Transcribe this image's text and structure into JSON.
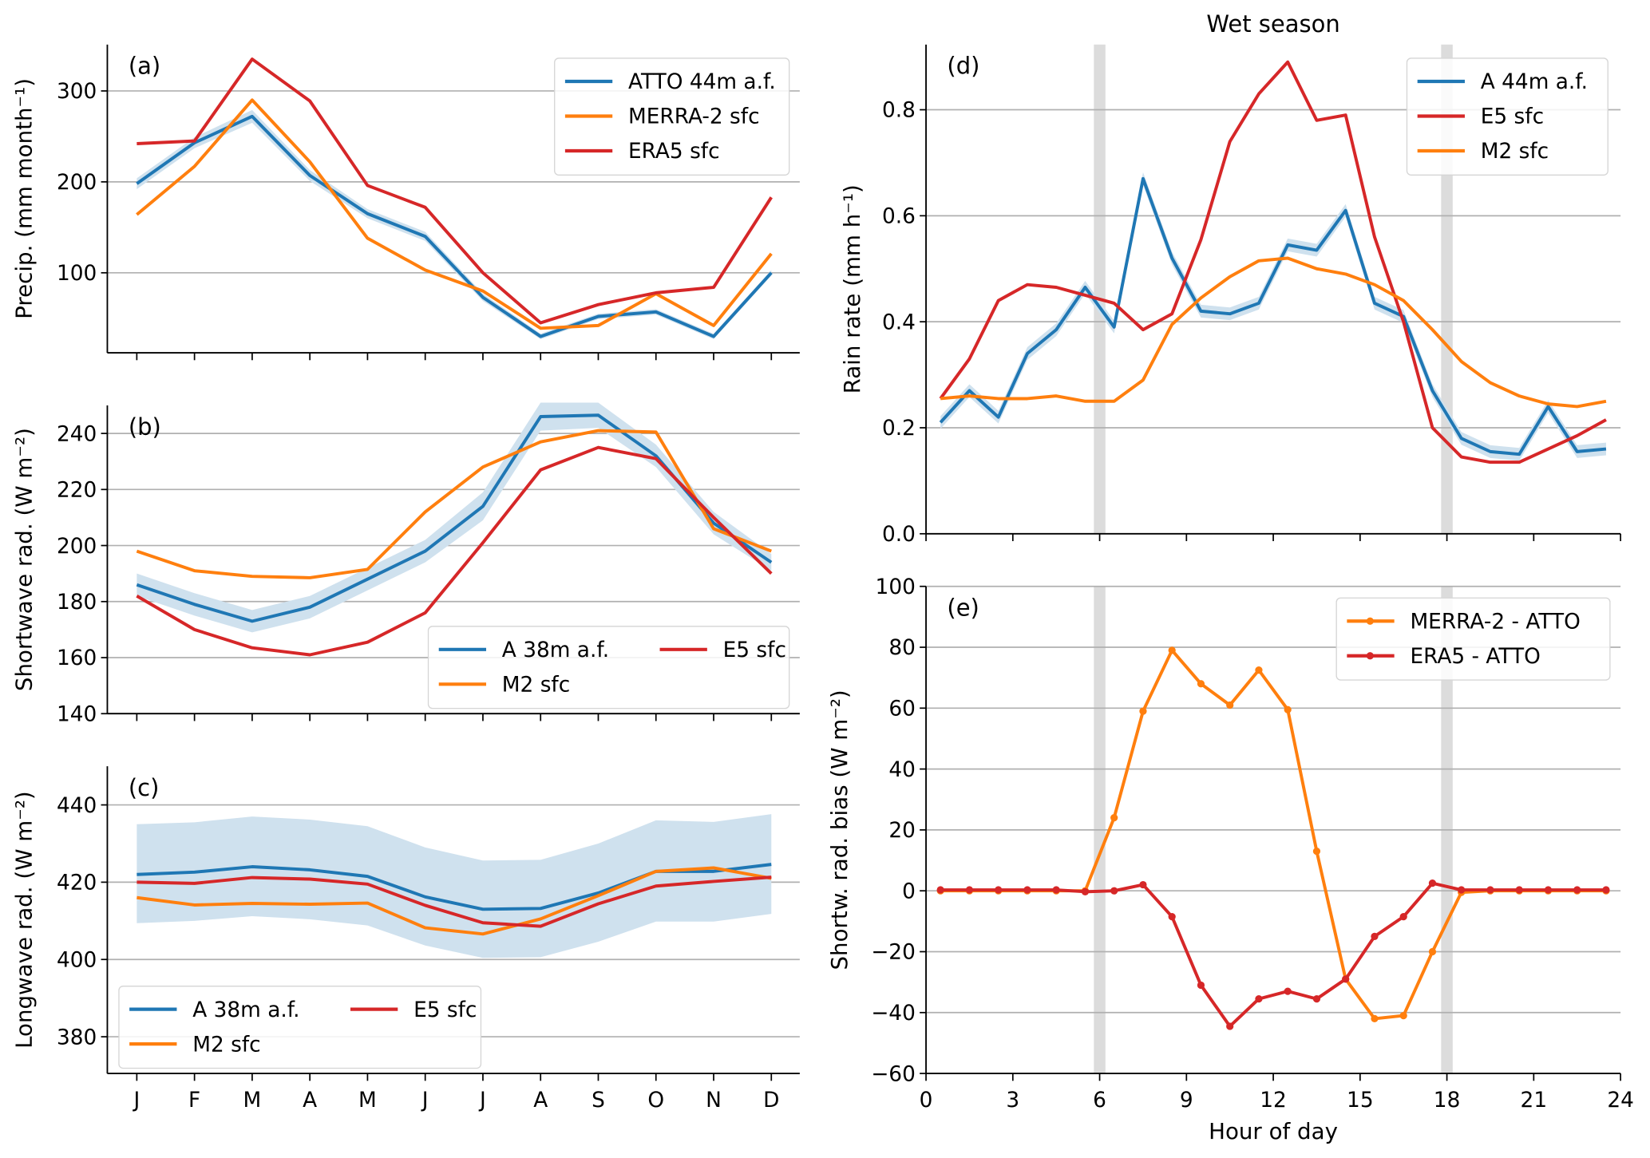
{
  "title": "Wet season",
  "colors": {
    "blue": "#1f77b4",
    "orange": "#ff7f0e",
    "red": "#d62728",
    "band": "#cfe1ee",
    "grid": "#b0b0b0",
    "night": "#dcdcdc"
  },
  "chart_data": [
    {
      "panel": "(a)",
      "type": "line",
      "x_kind": "month",
      "categories": [
        "J",
        "F",
        "M",
        "A",
        "M",
        "J",
        "J",
        "A",
        "S",
        "O",
        "N",
        "D"
      ],
      "show_xticklabels": false,
      "ylabel": "Precip. (mm month⁻¹)",
      "ylim": [
        12,
        351
      ],
      "yticks": [
        100,
        200,
        300
      ],
      "ytick_labels": [
        "100",
        "200",
        "300"
      ],
      "legend_placement": "top-right",
      "legend_columns": 1,
      "series": [
        {
          "name": "ATTO 44m a.f.",
          "color": "blue",
          "values": [
            198,
            243,
            272,
            207,
            165,
            140,
            73,
            30,
            52,
            57,
            30,
            100
          ],
          "band_lower": [
            192,
            237,
            265,
            201,
            160,
            135,
            69,
            27,
            49,
            54,
            27,
            97
          ],
          "band_upper": [
            204,
            249,
            279,
            213,
            170,
            145,
            77,
            33,
            55,
            60,
            33,
            103
          ]
        },
        {
          "name": "MERRA-2 sfc",
          "color": "orange",
          "values": [
            164,
            217,
            290,
            222,
            138,
            103,
            80,
            39,
            42,
            77,
            42,
            121
          ]
        },
        {
          "name": "ERA5 sfc",
          "color": "red",
          "values": [
            242,
            245,
            335,
            289,
            196,
            172,
            100,
            45,
            65,
            78,
            84,
            183
          ]
        }
      ]
    },
    {
      "panel": "(b)",
      "type": "line",
      "x_kind": "month",
      "categories": [
        "J",
        "F",
        "M",
        "A",
        "M",
        "J",
        "J",
        "A",
        "S",
        "O",
        "N",
        "D"
      ],
      "show_xticklabels": false,
      "ylabel": "Shortwave rad. (W m⁻²)",
      "ylim": [
        140,
        250
      ],
      "yticks": [
        140,
        160,
        180,
        200,
        220,
        240
      ],
      "ytick_labels": [
        "140",
        "160",
        "180",
        "200",
        "220",
        "240"
      ],
      "legend_placement": "lower-right",
      "legend_columns": 2,
      "series": [
        {
          "name": "A 38m a.f.",
          "color": "blue",
          "values": [
            186,
            179,
            173,
            178,
            188,
            198,
            214,
            246,
            246.5,
            232,
            208,
            194
          ],
          "band_lower": [
            182,
            175,
            169,
            174,
            184,
            194,
            209,
            241,
            242,
            228,
            204,
            191
          ],
          "band_upper": [
            190,
            183,
            177,
            182,
            192,
            202,
            219,
            251,
            251,
            236,
            212,
            197
          ]
        },
        {
          "name": "M2 sfc",
          "color": "orange",
          "values": [
            198,
            191,
            189,
            188.5,
            191.5,
            212,
            228,
            237,
            241,
            240.5,
            206,
            198
          ]
        },
        {
          "name": "E5 sfc",
          "color": "red",
          "values": [
            182,
            170,
            163.5,
            161,
            165.5,
            176,
            201,
            227,
            235,
            231,
            210,
            190
          ]
        }
      ]
    },
    {
      "panel": "(c)",
      "type": "line",
      "x_kind": "month",
      "categories": [
        "J",
        "F",
        "M",
        "A",
        "M",
        "J",
        "J",
        "A",
        "S",
        "O",
        "N",
        "D"
      ],
      "show_xticklabels": true,
      "ylabel": "Longwave rad. (W m⁻²)",
      "ylim": [
        370.5,
        450
      ],
      "yticks": [
        380,
        400,
        420,
        440
      ],
      "ytick_labels": [
        "380",
        "400",
        "420",
        "440"
      ],
      "legend_placement": "lower-left",
      "legend_columns": 2,
      "series": [
        {
          "name": "A 38m a.f.",
          "color": "blue",
          "values": [
            422,
            422.6,
            424,
            423.2,
            421.5,
            416.2,
            413,
            413.2,
            417.2,
            422.8,
            422.8,
            424.6
          ],
          "band_lower": [
            409.4,
            410,
            411.2,
            410.4,
            408.8,
            403.6,
            400.4,
            400.6,
            404.6,
            409.8,
            409.8,
            411.8
          ],
          "band_upper": [
            435,
            435.5,
            437,
            436.2,
            434.5,
            429,
            425.6,
            425.8,
            430,
            436,
            435.6,
            437.6
          ]
        },
        {
          "name": "M2 sfc",
          "color": "orange",
          "values": [
            416,
            414.1,
            414.5,
            414.3,
            414.6,
            408.2,
            406.6,
            410.5,
            416.5,
            422.8,
            423.7,
            421
          ]
        },
        {
          "name": "E5 sfc",
          "color": "red",
          "values": [
            420,
            419.7,
            421.2,
            420.8,
            419.5,
            414,
            409.5,
            408.6,
            414.4,
            419,
            420.2,
            421.3
          ]
        }
      ]
    },
    {
      "panel": "(d)",
      "type": "line",
      "x_kind": "hour",
      "x": [
        0.5,
        1.5,
        2.5,
        3.5,
        4.5,
        5.5,
        6.5,
        7.5,
        8.5,
        9.5,
        10.5,
        11.5,
        12.5,
        13.5,
        14.5,
        15.5,
        16.5,
        17.5,
        18.5,
        19.5,
        20.5,
        21.5,
        22.5,
        23.5
      ],
      "xlim": [
        0,
        24
      ],
      "xticks": [
        0,
        3,
        6,
        9,
        12,
        15,
        18,
        21,
        24
      ],
      "show_xticklabels": false,
      "night_bands": [
        [
          5.8,
          6.2
        ],
        [
          17.8,
          18.2
        ]
      ],
      "ylabel": "Rain rate (mm h⁻¹)",
      "ylim": [
        0,
        0.923
      ],
      "yticks": [
        0,
        0.2,
        0.4,
        0.6,
        0.8
      ],
      "ytick_labels": [
        "0.0",
        "0.2",
        "0.4",
        "0.6",
        "0.8"
      ],
      "legend_placement": "top-right",
      "legend_columns": 1,
      "series": [
        {
          "name": "A 44m a.f.",
          "color": "blue",
          "values": [
            0.21,
            0.27,
            0.22,
            0.34,
            0.385,
            0.465,
            0.39,
            0.67,
            0.52,
            0.42,
            0.415,
            0.435,
            0.545,
            0.535,
            0.61,
            0.435,
            0.41,
            0.27,
            0.18,
            0.155,
            0.15,
            0.24,
            0.155,
            0.16
          ],
          "band_halfwidth": 0.012
        },
        {
          "name": "E5 sfc",
          "color": "red",
          "values": [
            0.255,
            0.33,
            0.44,
            0.47,
            0.465,
            0.45,
            0.435,
            0.385,
            0.415,
            0.555,
            0.74,
            0.83,
            0.89,
            0.78,
            0.79,
            0.56,
            0.4,
            0.2,
            0.145,
            0.135,
            0.135,
            0.16,
            0.185,
            0.215
          ]
        },
        {
          "name": "M2 sfc",
          "color": "orange",
          "values": [
            0.255,
            0.26,
            0.255,
            0.255,
            0.26,
            0.25,
            0.25,
            0.29,
            0.395,
            0.445,
            0.485,
            0.515,
            0.52,
            0.5,
            0.49,
            0.47,
            0.44,
            0.385,
            0.325,
            0.285,
            0.26,
            0.245,
            0.24,
            0.25
          ]
        }
      ]
    },
    {
      "panel": "(e)",
      "type": "line",
      "x_kind": "hour",
      "markers": true,
      "x": [
        0.5,
        1.5,
        2.5,
        3.5,
        4.5,
        5.5,
        6.5,
        7.5,
        8.5,
        9.5,
        10.5,
        11.5,
        12.5,
        13.5,
        14.5,
        15.5,
        16.5,
        17.5,
        18.5,
        19.5,
        20.5,
        21.5,
        22.5,
        23.5
      ],
      "xlim": [
        0,
        24
      ],
      "xticks": [
        0,
        3,
        6,
        9,
        12,
        15,
        18,
        21,
        24
      ],
      "xtick_labels": [
        "0",
        "3",
        "6",
        "9",
        "12",
        "15",
        "18",
        "21",
        "24"
      ],
      "show_xticklabels": true,
      "xlabel": "Hour of day",
      "night_bands": [
        [
          5.8,
          6.2
        ],
        [
          17.8,
          18.2
        ]
      ],
      "ylabel": "Shortw. rad. bias (W m⁻²)",
      "ylim": [
        -60,
        100
      ],
      "yticks": [
        -60,
        -40,
        -20,
        0,
        20,
        40,
        60,
        80,
        100
      ],
      "ytick_labels": [
        "−60",
        "−40",
        "−20",
        "0",
        "20",
        "40",
        "60",
        "80",
        "100"
      ],
      "legend_placement": "top-right",
      "legend_columns": 1,
      "series": [
        {
          "name": "MERRA-2 - ATTO",
          "color": "orange",
          "values": [
            0,
            0,
            0,
            0,
            0,
            0,
            24,
            59,
            79,
            68,
            61,
            72.5,
            59.5,
            13,
            -29,
            -42,
            -41,
            -20,
            -0.5,
            0,
            0,
            0,
            0,
            0
          ]
        },
        {
          "name": "ERA5 - ATTO",
          "color": "red",
          "values": [
            0.3,
            0.3,
            0.3,
            0.3,
            0.3,
            -0.3,
            0,
            2,
            -8.5,
            -31,
            -44.5,
            -35.5,
            -33,
            -35.5,
            -29,
            -15,
            -8.5,
            2.5,
            0.3,
            0.3,
            0.3,
            0.3,
            0.3,
            0.3
          ]
        }
      ]
    }
  ]
}
